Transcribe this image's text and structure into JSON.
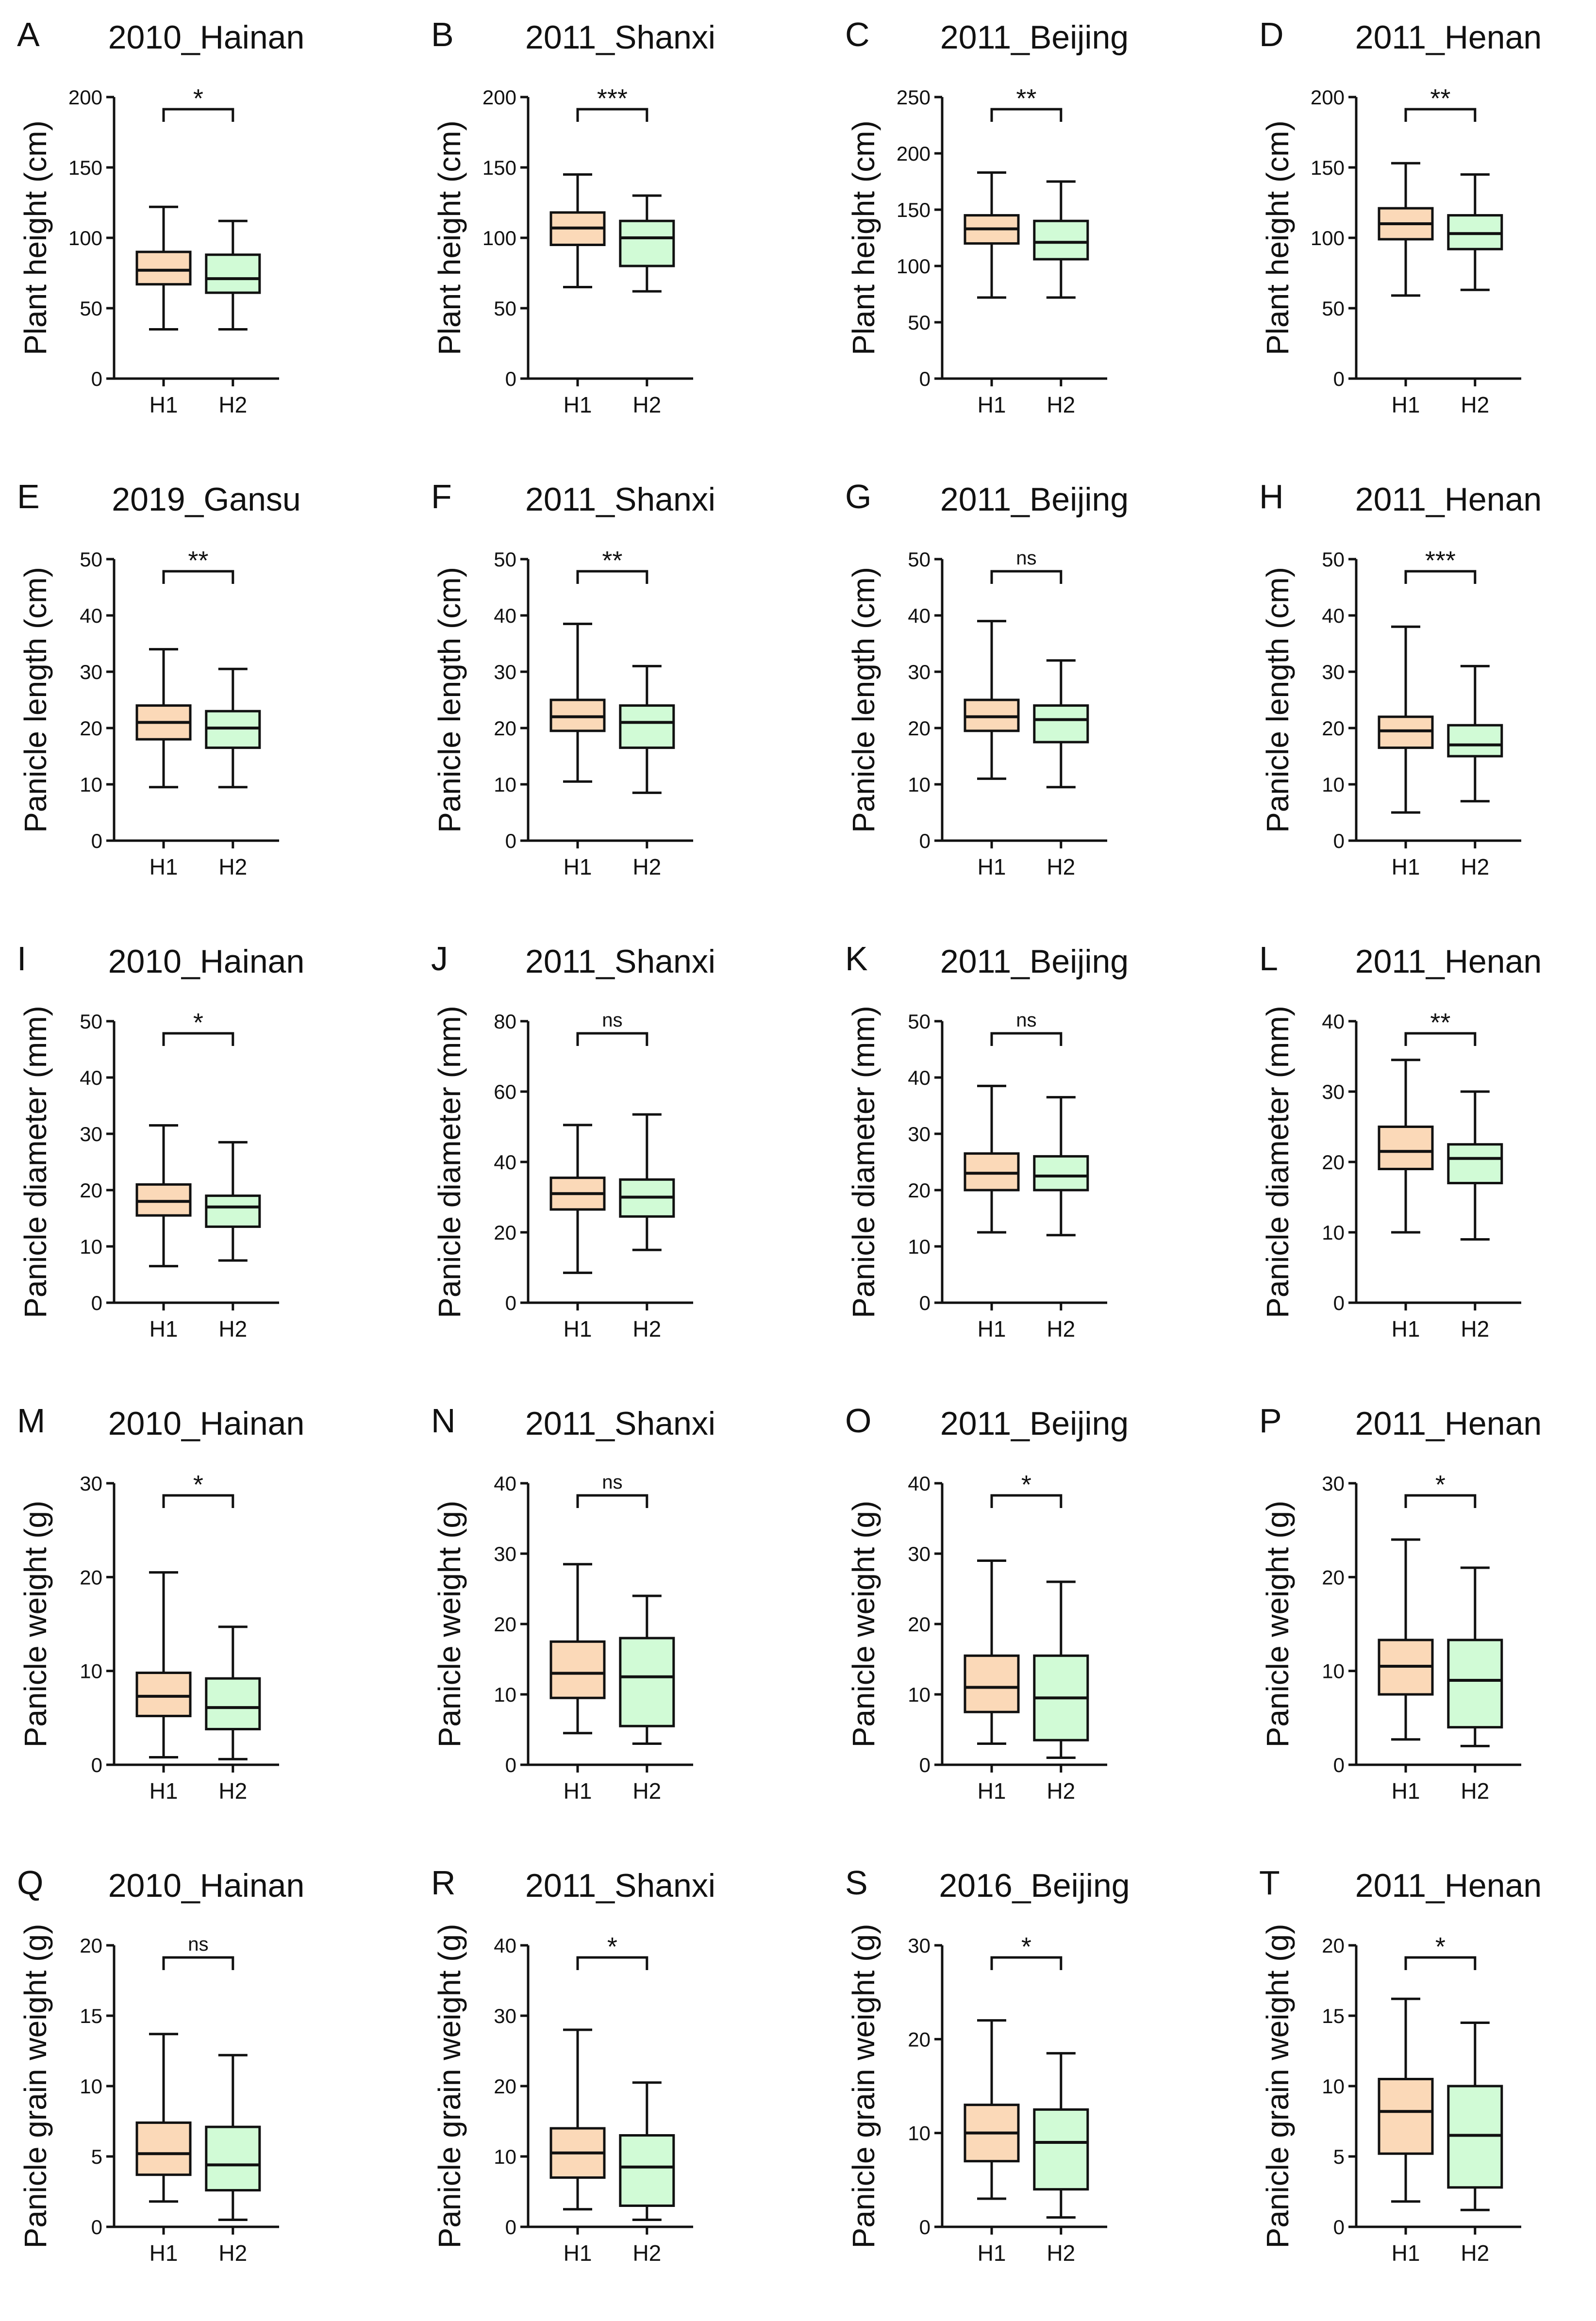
{
  "colors": {
    "H1": "#fbd9b8",
    "H2": "#d1fbd6",
    "line": "#111111"
  },
  "chart_data": [
    {
      "letter": "A",
      "type": "box",
      "title": "2010_Hainan",
      "ylabel": "Plant height (cm)",
      "ylim": [
        0,
        200
      ],
      "ticks": [
        0,
        50,
        100,
        150,
        200
      ],
      "categories": [
        "H1",
        "H2"
      ],
      "boxes": [
        {
          "min": 35,
          "q1": 67,
          "median": 77,
          "q3": 90,
          "max": 122
        },
        {
          "min": 35,
          "q1": 61,
          "median": 71,
          "q3": 88,
          "max": 112
        }
      ],
      "significance": "*"
    },
    {
      "letter": "B",
      "type": "box",
      "title": "2011_Shanxi",
      "ylabel": "Plant height (cm)",
      "ylim": [
        0,
        200
      ],
      "ticks": [
        0,
        50,
        100,
        150,
        200
      ],
      "categories": [
        "H1",
        "H2"
      ],
      "boxes": [
        {
          "min": 65,
          "q1": 95,
          "median": 107,
          "q3": 118,
          "max": 145
        },
        {
          "min": 62,
          "q1": 80,
          "median": 100,
          "q3": 112,
          "max": 130
        }
      ],
      "significance": "***"
    },
    {
      "letter": "C",
      "type": "box",
      "title": "2011_Beijing",
      "ylabel": "Plant height (cm)",
      "ylim": [
        0,
        250
      ],
      "ticks": [
        0,
        50,
        100,
        150,
        200,
        250
      ],
      "categories": [
        "H1",
        "H2"
      ],
      "boxes": [
        {
          "min": 72,
          "q1": 120,
          "median": 133,
          "q3": 145,
          "max": 183
        },
        {
          "min": 72,
          "q1": 106,
          "median": 121,
          "q3": 140,
          "max": 175
        }
      ],
      "significance": "**"
    },
    {
      "letter": "D",
      "type": "box",
      "title": "2011_Henan",
      "ylabel": "Plant height (cm)",
      "ylim": [
        0,
        200
      ],
      "ticks": [
        0,
        50,
        100,
        150,
        200
      ],
      "categories": [
        "H1",
        "H2"
      ],
      "boxes": [
        {
          "min": 59,
          "q1": 99,
          "median": 110,
          "q3": 121,
          "max": 153
        },
        {
          "min": 63,
          "q1": 92,
          "median": 103,
          "q3": 116,
          "max": 145
        }
      ],
      "significance": "**"
    },
    {
      "letter": "E",
      "type": "box",
      "title": "2019_Gansu",
      "ylabel": "Panicle length (cm)",
      "ylim": [
        0,
        50
      ],
      "ticks": [
        0,
        10,
        20,
        30,
        40,
        50
      ],
      "categories": [
        "H1",
        "H2"
      ],
      "boxes": [
        {
          "min": 9.5,
          "q1": 18,
          "median": 21,
          "q3": 24,
          "max": 34
        },
        {
          "min": 9.5,
          "q1": 16.5,
          "median": 20,
          "q3": 23,
          "max": 30.5
        }
      ],
      "significance": "**"
    },
    {
      "letter": "F",
      "type": "box",
      "title": "2011_Shanxi",
      "ylabel": "Panicle length (cm)",
      "ylim": [
        0,
        50
      ],
      "ticks": [
        0,
        10,
        20,
        30,
        40,
        50
      ],
      "categories": [
        "H1",
        "H2"
      ],
      "boxes": [
        {
          "min": 10.5,
          "q1": 19.5,
          "median": 22,
          "q3": 25,
          "max": 38.5
        },
        {
          "min": 8.5,
          "q1": 16.5,
          "median": 21,
          "q3": 24,
          "max": 31
        }
      ],
      "significance": "**"
    },
    {
      "letter": "G",
      "type": "box",
      "title": "2011_Beijing",
      "ylabel": "Panicle length (cm)",
      "ylim": [
        0,
        50
      ],
      "ticks": [
        0,
        10,
        20,
        30,
        40,
        50
      ],
      "categories": [
        "H1",
        "H2"
      ],
      "boxes": [
        {
          "min": 11,
          "q1": 19.5,
          "median": 22,
          "q3": 25,
          "max": 39
        },
        {
          "min": 9.5,
          "q1": 17.5,
          "median": 21.5,
          "q3": 24,
          "max": 32
        }
      ],
      "significance": "ns"
    },
    {
      "letter": "H",
      "type": "box",
      "title": "2011_Henan",
      "ylabel": "Panicle length (cm)",
      "ylim": [
        0,
        50
      ],
      "ticks": [
        0,
        10,
        20,
        30,
        40,
        50
      ],
      "categories": [
        "H1",
        "H2"
      ],
      "boxes": [
        {
          "min": 5,
          "q1": 16.5,
          "median": 19.5,
          "q3": 22,
          "max": 38
        },
        {
          "min": 7,
          "q1": 15,
          "median": 17,
          "q3": 20.5,
          "max": 31
        }
      ],
      "significance": "***"
    },
    {
      "letter": "I",
      "type": "box",
      "title": "2010_Hainan",
      "ylabel": "Panicle diameter (mm)",
      "ylim": [
        0,
        50
      ],
      "ticks": [
        0,
        10,
        20,
        30,
        40,
        50
      ],
      "categories": [
        "H1",
        "H2"
      ],
      "boxes": [
        {
          "min": 6.5,
          "q1": 15.5,
          "median": 18,
          "q3": 21,
          "max": 31.5
        },
        {
          "min": 7.5,
          "q1": 13.5,
          "median": 17,
          "q3": 19,
          "max": 28.5
        }
      ],
      "significance": "*"
    },
    {
      "letter": "J",
      "type": "box",
      "title": "2011_Shanxi",
      "ylabel": "Panicle diameter (mm)",
      "ylim": [
        0,
        80
      ],
      "ticks": [
        0,
        20,
        40,
        60,
        80
      ],
      "categories": [
        "H1",
        "H2"
      ],
      "boxes": [
        {
          "min": 8.5,
          "q1": 26.5,
          "median": 31,
          "q3": 35.5,
          "max": 50.5
        },
        {
          "min": 15,
          "q1": 24.5,
          "median": 30,
          "q3": 35,
          "max": 53.5
        }
      ],
      "significance": "ns"
    },
    {
      "letter": "K",
      "type": "box",
      "title": "2011_Beijing",
      "ylabel": "Panicle diameter (mm)",
      "ylim": [
        0,
        50
      ],
      "ticks": [
        0,
        10,
        20,
        30,
        40,
        50
      ],
      "categories": [
        "H1",
        "H2"
      ],
      "boxes": [
        {
          "min": 12.5,
          "q1": 20,
          "median": 23,
          "q3": 26.5,
          "max": 38.5
        },
        {
          "min": 12,
          "q1": 20,
          "median": 22.5,
          "q3": 26,
          "max": 36.5
        }
      ],
      "significance": "ns"
    },
    {
      "letter": "L",
      "type": "box",
      "title": "2011_Henan",
      "ylabel": "Panicle diameter (mm)",
      "ylim": [
        0,
        40
      ],
      "ticks": [
        0,
        10,
        20,
        30,
        40
      ],
      "categories": [
        "H1",
        "H2"
      ],
      "boxes": [
        {
          "min": 10,
          "q1": 19,
          "median": 21.5,
          "q3": 25,
          "max": 34.5
        },
        {
          "min": 9,
          "q1": 17,
          "median": 20.5,
          "q3": 22.5,
          "max": 30
        }
      ],
      "significance": "**"
    },
    {
      "letter": "M",
      "type": "box",
      "title": "2010_Hainan",
      "ylabel": "Panicle weight (g)",
      "ylim": [
        0,
        30
      ],
      "ticks": [
        0,
        10,
        20,
        30
      ],
      "categories": [
        "H1",
        "H2"
      ],
      "boxes": [
        {
          "min": 0.8,
          "q1": 5.2,
          "median": 7.3,
          "q3": 9.8,
          "max": 20.5
        },
        {
          "min": 0.6,
          "q1": 3.8,
          "median": 6.1,
          "q3": 9.2,
          "max": 14.7
        }
      ],
      "significance": "*"
    },
    {
      "letter": "N",
      "type": "box",
      "title": "2011_Shanxi",
      "ylabel": "Panicle weight (g)",
      "ylim": [
        0,
        40
      ],
      "ticks": [
        0,
        10,
        20,
        30,
        40
      ],
      "categories": [
        "H1",
        "H2"
      ],
      "boxes": [
        {
          "min": 4.5,
          "q1": 9.5,
          "median": 13,
          "q3": 17.5,
          "max": 28.5
        },
        {
          "min": 3,
          "q1": 5.5,
          "median": 12.5,
          "q3": 18,
          "max": 24
        }
      ],
      "significance": "ns"
    },
    {
      "letter": "O",
      "type": "box",
      "title": "2011_Beijing",
      "ylabel": "Panicle weight (g)",
      "ylim": [
        0,
        40
      ],
      "ticks": [
        0,
        10,
        20,
        30,
        40
      ],
      "categories": [
        "H1",
        "H2"
      ],
      "boxes": [
        {
          "min": 3,
          "q1": 7.5,
          "median": 11,
          "q3": 15.5,
          "max": 29
        },
        {
          "min": 1,
          "q1": 3.5,
          "median": 9.5,
          "q3": 15.5,
          "max": 26
        }
      ],
      "significance": "*"
    },
    {
      "letter": "P",
      "type": "box",
      "title": "2011_Henan",
      "ylabel": "Panicle weight (g)",
      "ylim": [
        0,
        30
      ],
      "ticks": [
        0,
        10,
        20,
        30
      ],
      "categories": [
        "H1",
        "H2"
      ],
      "boxes": [
        {
          "min": 2.7,
          "q1": 7.5,
          "median": 10.5,
          "q3": 13.3,
          "max": 24
        },
        {
          "min": 2,
          "q1": 4,
          "median": 9,
          "q3": 13.3,
          "max": 21
        }
      ],
      "significance": "*"
    },
    {
      "letter": "Q",
      "type": "box",
      "title": "2010_Hainan",
      "ylabel": "Panicle grain weight (g)",
      "ylim": [
        0,
        20
      ],
      "ticks": [
        0,
        5,
        10,
        15,
        20
      ],
      "categories": [
        "H1",
        "H2"
      ],
      "boxes": [
        {
          "min": 1.8,
          "q1": 3.7,
          "median": 5.2,
          "q3": 7.4,
          "max": 13.7
        },
        {
          "min": 0.5,
          "q1": 2.6,
          "median": 4.4,
          "q3": 7.1,
          "max": 12.2
        }
      ],
      "significance": "ns"
    },
    {
      "letter": "R",
      "type": "box",
      "title": "2011_Shanxi",
      "ylabel": "Panicle grain weight (g)",
      "ylim": [
        0,
        40
      ],
      "ticks": [
        0,
        10,
        20,
        30,
        40
      ],
      "categories": [
        "H1",
        "H2"
      ],
      "boxes": [
        {
          "min": 2.5,
          "q1": 7,
          "median": 10.5,
          "q3": 14,
          "max": 28
        },
        {
          "min": 1,
          "q1": 3,
          "median": 8.5,
          "q3": 13,
          "max": 20.5
        }
      ],
      "significance": "*"
    },
    {
      "letter": "S",
      "type": "box",
      "title": "2016_Beijing",
      "ylabel": "Panicle grain weight (g)",
      "ylim": [
        0,
        30
      ],
      "ticks": [
        0,
        10,
        20,
        30
      ],
      "categories": [
        "H1",
        "H2"
      ],
      "boxes": [
        {
          "min": 3,
          "q1": 7,
          "median": 10,
          "q3": 13,
          "max": 22
        },
        {
          "min": 1,
          "q1": 4,
          "median": 9,
          "q3": 12.5,
          "max": 18.5
        }
      ],
      "significance": "*"
    },
    {
      "letter": "T",
      "type": "box",
      "title": "2011_Henan",
      "ylabel": "Panicle grain weight (g)",
      "ylim": [
        0,
        20
      ],
      "ticks": [
        0,
        5,
        10,
        15,
        20
      ],
      "categories": [
        "H1",
        "H2"
      ],
      "boxes": [
        {
          "min": 1.8,
          "q1": 5.2,
          "median": 8.2,
          "q3": 10.5,
          "max": 16.2
        },
        {
          "min": 1.2,
          "q1": 2.8,
          "median": 6.5,
          "q3": 10,
          "max": 14.5
        }
      ],
      "significance": "*"
    }
  ]
}
